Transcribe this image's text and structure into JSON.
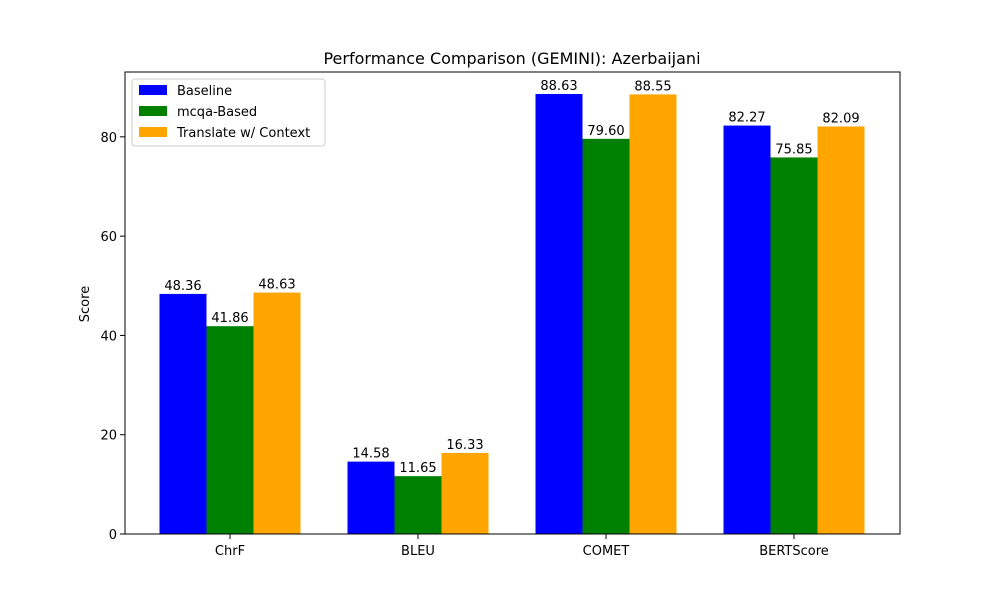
{
  "chart_data": {
    "type": "bar",
    "title": "Performance Comparison (GEMINI): Azerbaijani",
    "xlabel": "",
    "ylabel": "Score",
    "categories": [
      "ChrF",
      "BLEU",
      "COMET",
      "BERTScore"
    ],
    "series": [
      {
        "name": "Baseline",
        "color": "#0000ff",
        "values": [
          48.36,
          14.58,
          88.63,
          82.27
        ],
        "labels": [
          "48.36",
          "14.58",
          "88.63",
          "82.27"
        ]
      },
      {
        "name": "mcqa-Based",
        "color": "#008000",
        "values": [
          41.86,
          11.65,
          79.6,
          75.85
        ],
        "labels": [
          "41.86",
          "11.65",
          "79.60",
          "75.85"
        ]
      },
      {
        "name": "Translate w/ Context",
        "color": "#ffa500",
        "values": [
          48.63,
          16.33,
          88.55,
          82.09
        ],
        "labels": [
          "48.63",
          "16.33",
          "88.55",
          "82.09"
        ]
      }
    ],
    "ylim": [
      0,
      93.06
    ],
    "yticks": [
      0,
      20,
      40,
      60,
      80
    ],
    "ytick_labels": [
      "0",
      "20",
      "40",
      "60",
      "80"
    ],
    "grid": false,
    "legend_position": "top-left"
  }
}
